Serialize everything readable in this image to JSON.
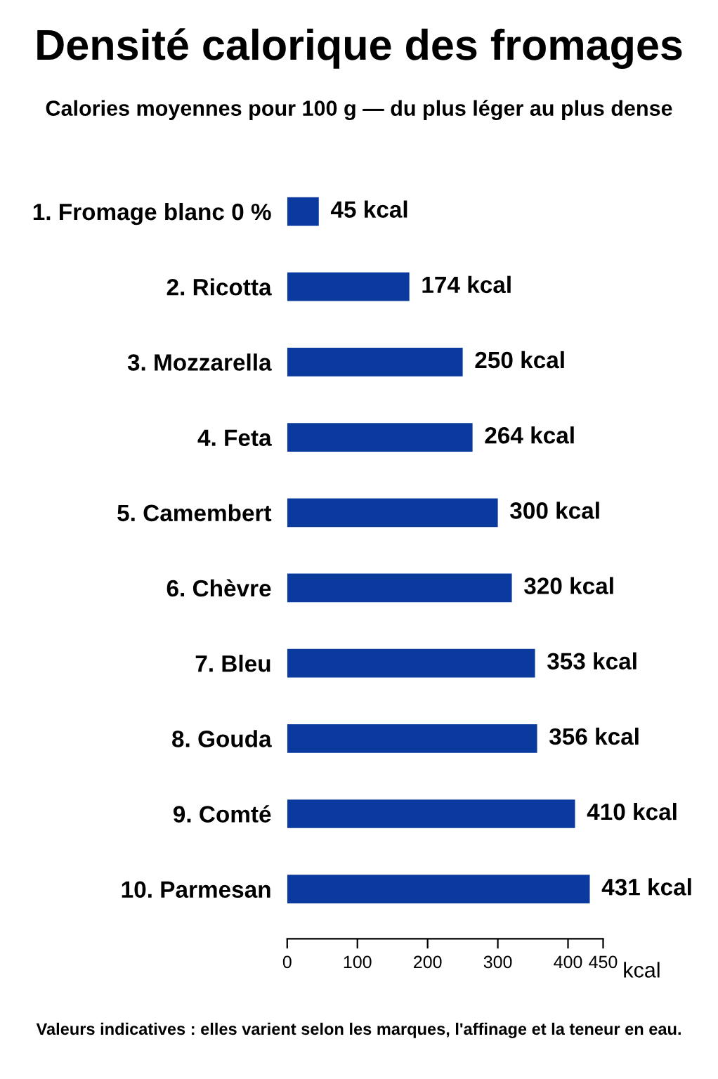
{
  "chart_data": {
    "type": "bar",
    "orientation": "horizontal",
    "title": "Densité calorique des fromages",
    "subtitle": "Calories moyennes pour 100 g — du plus léger au plus dense",
    "categories": [
      "1. Fromage blanc 0 %",
      "2. Ricotta",
      "3. Mozzarella",
      "4. Feta",
      "5. Camembert",
      "6. Chèvre",
      "7. Bleu",
      "8. Gouda",
      "9. Comté",
      "10. Parmesan"
    ],
    "values": [
      45,
      174,
      250,
      264,
      300,
      320,
      353,
      356,
      410,
      431
    ],
    "value_labels": [
      "45 kcal",
      "174 kcal",
      "250 kcal",
      "264 kcal",
      "300 kcal",
      "320 kcal",
      "353 kcal",
      "356 kcal",
      "410 kcal",
      "431 kcal"
    ],
    "color": "#0b3a9e",
    "xlim": [
      0,
      450
    ],
    "xticks": [
      0,
      100,
      200,
      300,
      400,
      450
    ],
    "xlabel": "kcal",
    "grid": false,
    "legend": false,
    "annotations": [
      "Valeurs indicatives : elles varient selon les marques, l'affinage et la teneur en eau."
    ]
  }
}
